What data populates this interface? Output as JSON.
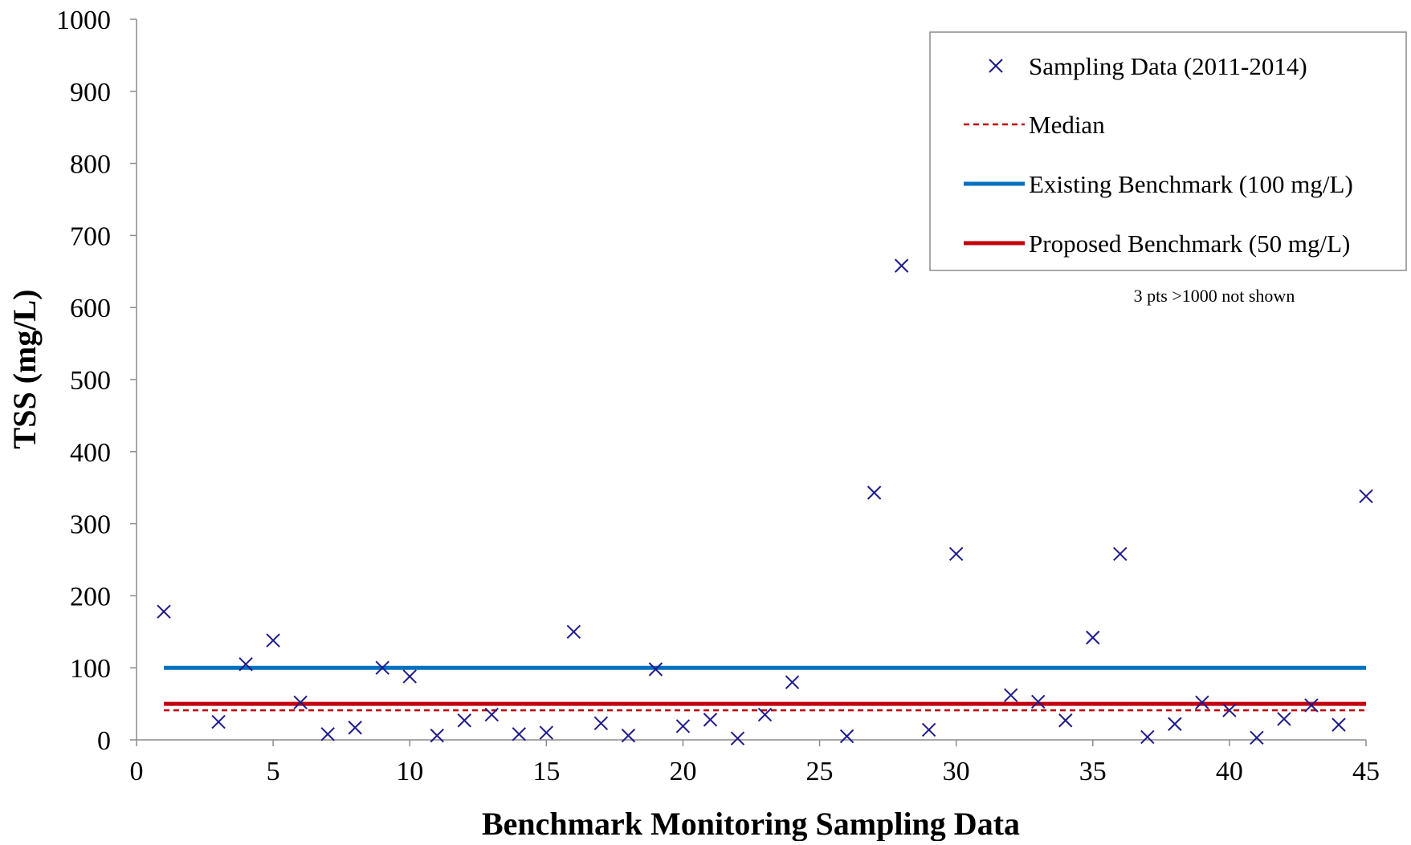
{
  "chart_data": {
    "type": "scatter",
    "title": "",
    "xlabel": "Benchmark Monitoring Sampling Data",
    "ylabel": "TSS (mg/L)",
    "xlim": [
      0,
      45
    ],
    "ylim": [
      0,
      1000
    ],
    "x_ticks": [
      0,
      5,
      10,
      15,
      20,
      25,
      30,
      35,
      40,
      45
    ],
    "y_ticks": [
      0,
      100,
      200,
      300,
      400,
      500,
      600,
      700,
      800,
      900,
      1000
    ],
    "grid": false,
    "legend_position": "top-right",
    "annotation": "3 pts >1000 not shown",
    "series": [
      {
        "name": "Sampling Data (2011-2014)",
        "type": "scatter",
        "marker": "x",
        "color": "#1f1a8a",
        "points": [
          [
            1,
            178
          ],
          [
            3,
            25
          ],
          [
            4,
            105
          ],
          [
            5,
            138
          ],
          [
            6,
            52
          ],
          [
            7,
            8
          ],
          [
            8,
            17
          ],
          [
            9,
            100
          ],
          [
            10,
            88
          ],
          [
            11,
            6
          ],
          [
            12,
            27
          ],
          [
            13,
            35
          ],
          [
            14,
            8
          ],
          [
            15,
            10
          ],
          [
            16,
            150
          ],
          [
            17,
            23
          ],
          [
            18,
            6
          ],
          [
            19,
            98
          ],
          [
            20,
            19
          ],
          [
            21,
            28
          ],
          [
            22,
            2
          ],
          [
            23,
            35
          ],
          [
            24,
            80
          ],
          [
            26,
            5
          ],
          [
            27,
            343
          ],
          [
            28,
            658
          ],
          [
            29,
            14
          ],
          [
            30,
            258
          ],
          [
            32,
            62
          ],
          [
            33,
            53
          ],
          [
            34,
            27
          ],
          [
            35,
            142
          ],
          [
            36,
            258
          ],
          [
            37,
            4
          ],
          [
            38,
            22
          ],
          [
            39,
            52
          ],
          [
            40,
            41
          ],
          [
            41,
            3
          ],
          [
            42,
            29
          ],
          [
            43,
            48
          ],
          [
            44,
            21
          ],
          [
            45,
            338
          ]
        ]
      },
      {
        "name": "Median",
        "type": "line",
        "style": "dashed",
        "color": "#c0000b",
        "points": [
          [
            1,
            41
          ],
          [
            45,
            41
          ]
        ]
      },
      {
        "name": "Existing Benchmark (100 mg/L)",
        "type": "line",
        "style": "solid",
        "color": "#0070c0",
        "points": [
          [
            1,
            100
          ],
          [
            45,
            100
          ]
        ]
      },
      {
        "name": "Proposed Benchmark (50 mg/L)",
        "type": "line",
        "style": "solid",
        "color": "#c0000b",
        "points": [
          [
            1,
            50
          ],
          [
            45,
            50
          ]
        ]
      }
    ]
  }
}
